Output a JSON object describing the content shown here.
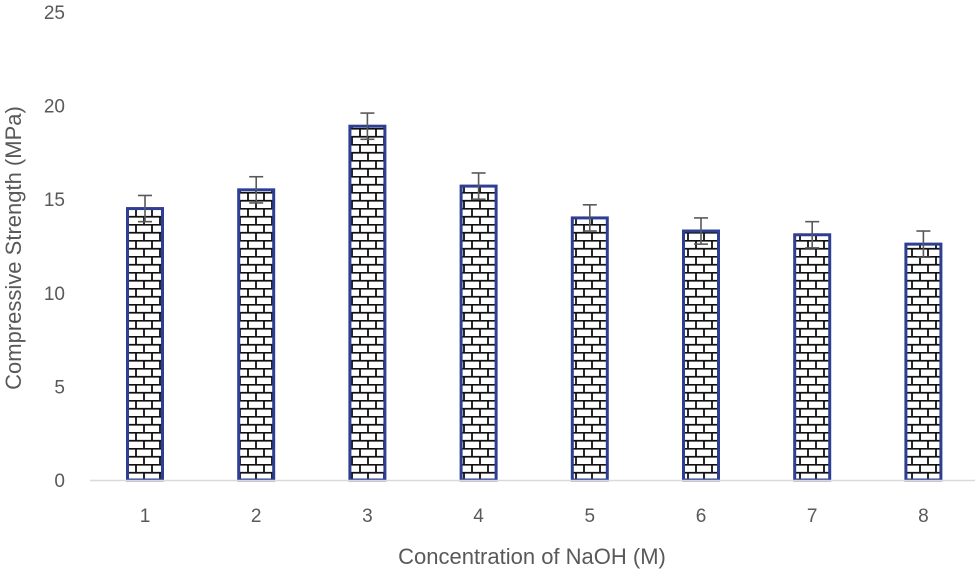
{
  "chart_data": {
    "type": "bar",
    "title": "",
    "xlabel": "Concentration of NaOH (M)",
    "ylabel": "Compressive Strength (MPa)",
    "categories": [
      "1",
      "2",
      "3",
      "4",
      "5",
      "6",
      "7",
      "8"
    ],
    "series": [
      {
        "values": [
          14.5,
          15.5,
          18.9,
          15.7,
          14.0,
          13.3,
          13.1,
          12.6
        ],
        "error": [
          0.7,
          0.7,
          0.7,
          0.7,
          0.7,
          0.7,
          0.7,
          0.7
        ]
      }
    ],
    "ylim": [
      0,
      25
    ],
    "yticks": [
      0,
      5,
      10,
      15,
      20,
      25
    ],
    "grid": false,
    "legend": "none",
    "bar_pattern": "brick",
    "colors": {
      "bar_outline": "#2E3F93",
      "brick_line": "#111111",
      "error_bar": "#595959",
      "axis_line": "#D9D9D9",
      "text": "#595959"
    }
  }
}
